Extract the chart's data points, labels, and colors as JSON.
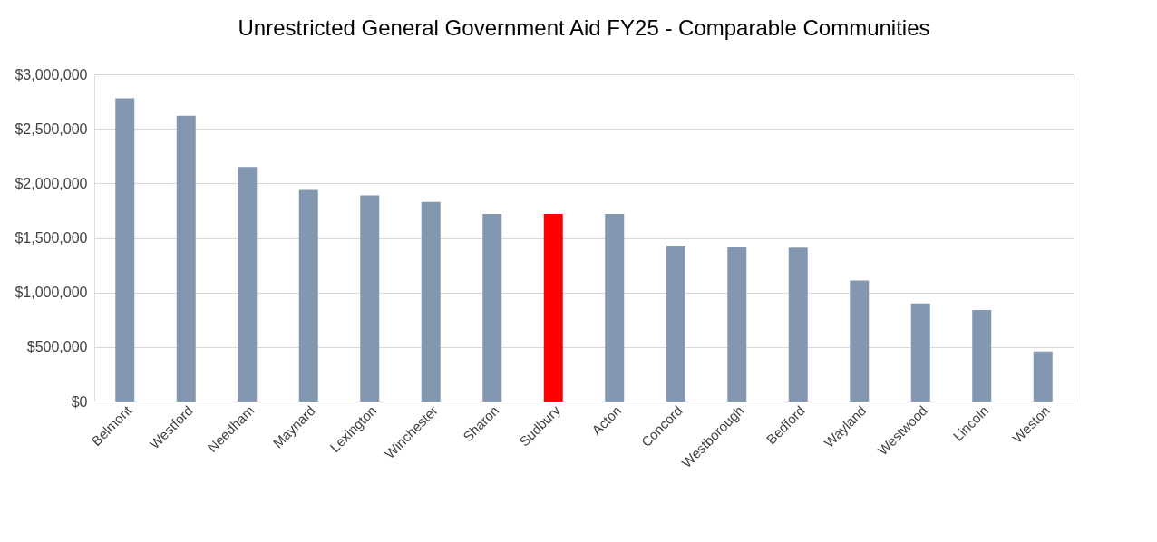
{
  "chart_data": {
    "type": "bar",
    "title": "Unrestricted General  Government Aid FY25 - Comparable Communities",
    "categories": [
      "Belmont",
      "Westford",
      "Needham",
      "Maynard",
      "Lexington",
      "Winchester",
      "Sharon",
      "Sudbury",
      "Acton",
      "Concord",
      "Westborough",
      "Bedford",
      "Wayland",
      "Westwood",
      "Lincoln",
      "Weston"
    ],
    "values": [
      2780000,
      2620000,
      2150000,
      1940000,
      1890000,
      1830000,
      1720000,
      1720000,
      1720000,
      1430000,
      1420000,
      1410000,
      1110000,
      900000,
      840000,
      460000
    ],
    "colors": [
      "#8497b0",
      "#8497b0",
      "#8497b0",
      "#8497b0",
      "#8497b0",
      "#8497b0",
      "#8497b0",
      "#ff0000",
      "#8497b0",
      "#8497b0",
      "#8497b0",
      "#8497b0",
      "#8497b0",
      "#8497b0",
      "#8497b0",
      "#8497b0"
    ],
    "ylim": [
      0,
      3000000
    ],
    "yticks": [
      {
        "value": 0,
        "label": "$0"
      },
      {
        "value": 500000,
        "label": "$500,000"
      },
      {
        "value": 1000000,
        "label": "$1,000,000"
      },
      {
        "value": 1500000,
        "label": "$1,500,000"
      },
      {
        "value": 2000000,
        "label": "$2,000,000"
      },
      {
        "value": 2500000,
        "label": "$2,500,000"
      },
      {
        "value": 3000000,
        "label": "$3,000,000"
      }
    ],
    "grid": "y"
  }
}
